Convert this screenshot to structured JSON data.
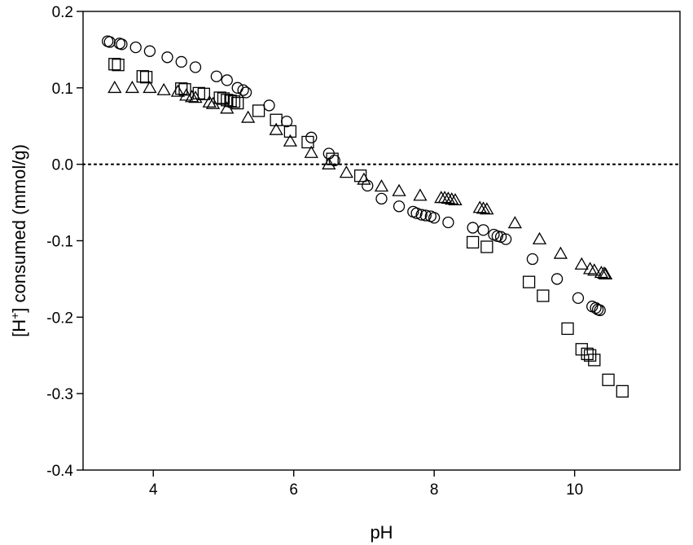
{
  "chart_data": {
    "type": "scatter",
    "title": "",
    "xlabel": "pH",
    "ylabel": {
      "prefix": "[H",
      "sup": "+",
      "suffix": "] consumed (mmol/g)"
    },
    "xlim": [
      3.0,
      11.5
    ],
    "ylim": [
      -0.4,
      0.2
    ],
    "xticks": [
      4,
      6,
      8,
      10
    ],
    "xtick_labels": [
      "4",
      "6",
      "8",
      "10"
    ],
    "yticks": [
      -0.4,
      -0.3,
      -0.2,
      -0.1,
      0.0,
      0.1,
      0.2
    ],
    "ytick_labels": [
      "-0.4",
      "-0.3",
      "-0.2",
      "-0.1",
      "0.0",
      "0.1",
      "0.2"
    ],
    "reference_line": {
      "y": 0.0,
      "style": "dotted"
    },
    "grid": false,
    "legend": "none",
    "series": [
      {
        "marker": "circle",
        "points": [
          [
            3.35,
            0.161
          ],
          [
            3.38,
            0.16
          ],
          [
            3.52,
            0.158
          ],
          [
            3.55,
            0.157
          ],
          [
            3.75,
            0.153
          ],
          [
            3.95,
            0.148
          ],
          [
            4.2,
            0.14
          ],
          [
            4.4,
            0.134
          ],
          [
            4.6,
            0.127
          ],
          [
            4.9,
            0.115
          ],
          [
            5.05,
            0.11
          ],
          [
            5.2,
            0.1
          ],
          [
            5.28,
            0.097
          ],
          [
            5.32,
            0.094
          ],
          [
            5.65,
            0.077
          ],
          [
            5.9,
            0.056
          ],
          [
            6.25,
            0.035
          ],
          [
            6.5,
            0.014
          ],
          [
            6.58,
            0.005
          ],
          [
            7.05,
            -0.028
          ],
          [
            7.25,
            -0.045
          ],
          [
            7.5,
            -0.055
          ],
          [
            7.7,
            -0.062
          ],
          [
            7.75,
            -0.064
          ],
          [
            7.82,
            -0.066
          ],
          [
            7.88,
            -0.067
          ],
          [
            7.95,
            -0.068
          ],
          [
            8.0,
            -0.07
          ],
          [
            8.2,
            -0.076
          ],
          [
            8.55,
            -0.083
          ],
          [
            8.7,
            -0.086
          ],
          [
            8.85,
            -0.092
          ],
          [
            8.9,
            -0.094
          ],
          [
            8.95,
            -0.095
          ],
          [
            9.02,
            -0.098
          ],
          [
            9.4,
            -0.124
          ],
          [
            9.75,
            -0.15
          ],
          [
            10.05,
            -0.175
          ],
          [
            10.25,
            -0.186
          ],
          [
            10.3,
            -0.188
          ],
          [
            10.33,
            -0.19
          ],
          [
            10.36,
            -0.191
          ]
        ]
      },
      {
        "marker": "square",
        "points": [
          [
            3.45,
            0.131
          ],
          [
            3.5,
            0.13
          ],
          [
            3.85,
            0.115
          ],
          [
            3.9,
            0.114
          ],
          [
            4.4,
            0.099
          ],
          [
            4.45,
            0.098
          ],
          [
            4.65,
            0.093
          ],
          [
            4.72,
            0.092
          ],
          [
            4.95,
            0.087
          ],
          [
            5.0,
            0.086
          ],
          [
            5.05,
            0.084
          ],
          [
            5.1,
            0.083
          ],
          [
            5.15,
            0.082
          ],
          [
            5.2,
            0.08
          ],
          [
            5.5,
            0.07
          ],
          [
            5.75,
            0.058
          ],
          [
            5.95,
            0.043
          ],
          [
            6.2,
            0.029
          ],
          [
            6.55,
            0.007
          ],
          [
            6.95,
            -0.015
          ],
          [
            8.55,
            -0.102
          ],
          [
            8.75,
            -0.108
          ],
          [
            9.35,
            -0.154
          ],
          [
            9.55,
            -0.172
          ],
          [
            9.9,
            -0.215
          ],
          [
            10.1,
            -0.242
          ],
          [
            10.18,
            -0.248
          ],
          [
            10.22,
            -0.25
          ],
          [
            10.28,
            -0.256
          ],
          [
            10.48,
            -0.282
          ],
          [
            10.68,
            -0.297
          ]
        ]
      },
      {
        "marker": "triangle",
        "points": [
          [
            3.45,
            0.1
          ],
          [
            3.7,
            0.1
          ],
          [
            3.95,
            0.1
          ],
          [
            4.15,
            0.097
          ],
          [
            4.35,
            0.095
          ],
          [
            4.47,
            0.09
          ],
          [
            4.55,
            0.088
          ],
          [
            4.6,
            0.087
          ],
          [
            4.8,
            0.081
          ],
          [
            4.85,
            0.079
          ],
          [
            5.05,
            0.073
          ],
          [
            5.35,
            0.061
          ],
          [
            5.75,
            0.045
          ],
          [
            5.95,
            0.03
          ],
          [
            6.25,
            0.015
          ],
          [
            6.5,
            0.0
          ],
          [
            6.75,
            -0.011
          ],
          [
            7.0,
            -0.02
          ],
          [
            7.25,
            -0.029
          ],
          [
            7.5,
            -0.035
          ],
          [
            7.8,
            -0.041
          ],
          [
            8.1,
            -0.044
          ],
          [
            8.15,
            -0.044
          ],
          [
            8.2,
            -0.045
          ],
          [
            8.25,
            -0.046
          ],
          [
            8.3,
            -0.047
          ],
          [
            8.65,
            -0.057
          ],
          [
            8.7,
            -0.058
          ],
          [
            8.75,
            -0.059
          ],
          [
            9.15,
            -0.077
          ],
          [
            9.5,
            -0.098
          ],
          [
            9.8,
            -0.117
          ],
          [
            10.1,
            -0.131
          ],
          [
            10.22,
            -0.137
          ],
          [
            10.28,
            -0.139
          ],
          [
            10.38,
            -0.142
          ],
          [
            10.42,
            -0.143
          ],
          [
            10.44,
            -0.144
          ]
        ]
      }
    ]
  }
}
